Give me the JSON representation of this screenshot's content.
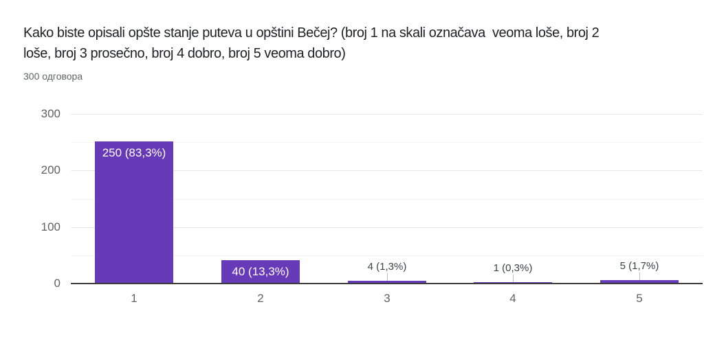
{
  "page": {
    "background": "#ffffff"
  },
  "header": {
    "title_lines": [
      "Kako biste opisali opšte stanje puteva u opštini Bečej? (broj 1 na skali označava  veoma loše, broj 2",
      "loše, broj 3 prosečno, broj 4 dobro, broj 5 veoma dobro)"
    ],
    "response_count_label": "300 одговора"
  },
  "chart_data": {
    "type": "bar",
    "title": "Kako biste opisali opšte stanje puteva u opštini Bečej? (broj 1 na skali označava  veoma loše, broj 2 loše, broj 3 prosečno, broj 4 dobro, broj 5 veoma dobro)",
    "subtitle": "300 одговора",
    "categories": [
      "1",
      "2",
      "3",
      "4",
      "5"
    ],
    "values": [
      250,
      40,
      4,
      1,
      5
    ],
    "annotations": [
      "250 (83,3%)",
      "40 (13,3%)",
      "4 (1,3%)",
      "1 (0,3%)",
      "5 (1,7%)"
    ],
    "percentages": [
      83.3,
      13.3,
      1.3,
      0.3,
      1.7
    ],
    "total_responses": 300,
    "xlabel": "",
    "ylabel": "",
    "ylim": [
      0,
      300
    ],
    "y_ticks": [
      0,
      100,
      200,
      300
    ],
    "y_minor_ticks": [
      50,
      150,
      250
    ],
    "grid": "horizontal",
    "legend": "none",
    "bar_color": "#673ab7",
    "inside_label_color": "#ffffff",
    "outside_label_color": "#3c4043",
    "tick_label_color": "#616161"
  }
}
